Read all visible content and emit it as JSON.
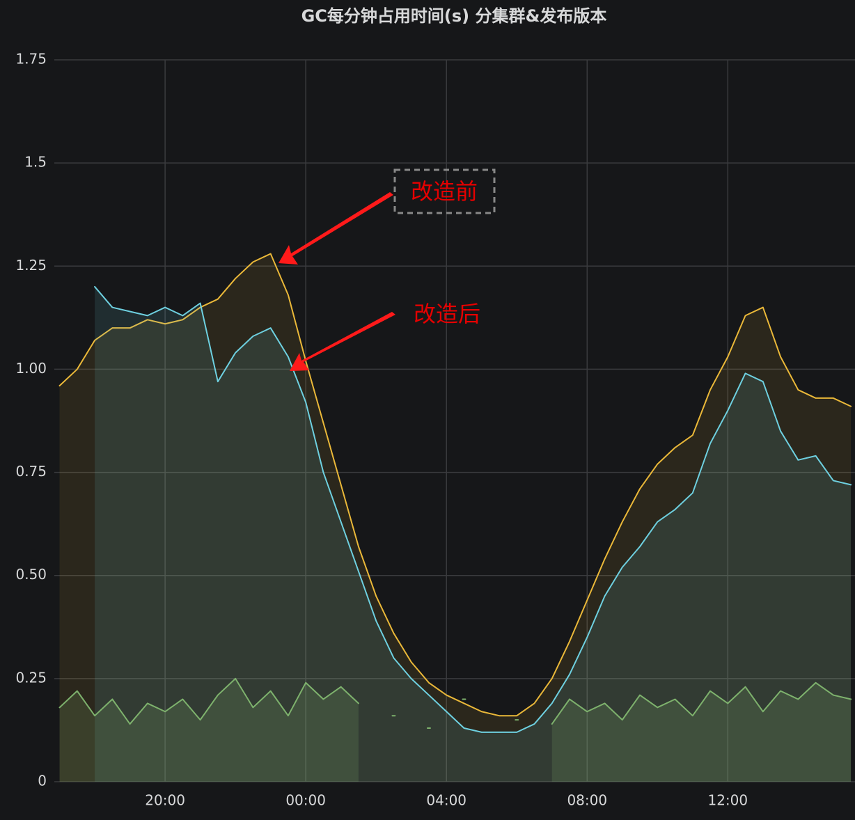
{
  "chart_data": {
    "type": "line",
    "title": "GC每分钟占用时间(s) 分集群&发布版本",
    "x": [
      "17:00",
      "17:30",
      "18:00",
      "18:30",
      "19:00",
      "19:30",
      "20:00",
      "20:30",
      "21:00",
      "21:30",
      "22:00",
      "22:30",
      "23:00",
      "23:30",
      "00:00",
      "00:30",
      "01:00",
      "01:30",
      "02:00",
      "02:30",
      "03:00",
      "03:30",
      "04:00",
      "04:30",
      "05:00",
      "05:30",
      "06:00",
      "06:30",
      "07:00",
      "07:30",
      "08:00",
      "08:30",
      "09:00",
      "09:30",
      "10:00",
      "10:30",
      "11:00",
      "11:30",
      "12:00",
      "12:30",
      "13:00",
      "13:30",
      "14:00",
      "14:30",
      "15:00",
      "15:30"
    ],
    "series": [
      {
        "color": "#eab839",
        "values": [
          0.96,
          1.0,
          1.07,
          1.1,
          1.1,
          1.12,
          1.11,
          1.12,
          1.15,
          1.17,
          1.22,
          1.26,
          1.28,
          1.18,
          1.02,
          0.87,
          0.72,
          0.57,
          0.45,
          0.36,
          0.29,
          0.24,
          0.21,
          0.19,
          0.17,
          0.16,
          0.16,
          0.19,
          0.25,
          0.34,
          0.44,
          0.54,
          0.63,
          0.71,
          0.77,
          0.81,
          0.84,
          0.95,
          1.03,
          1.13,
          1.15,
          1.03,
          0.95,
          0.93,
          0.93,
          0.91
        ]
      },
      {
        "color": "#6ed0e0",
        "values": [
          null,
          null,
          1.2,
          1.15,
          1.14,
          1.13,
          1.15,
          1.13,
          1.16,
          0.97,
          1.04,
          1.08,
          1.1,
          1.03,
          0.92,
          0.75,
          0.63,
          0.51,
          0.39,
          0.3,
          0.25,
          0.21,
          0.17,
          0.13,
          0.12,
          0.12,
          0.12,
          0.14,
          0.19,
          0.26,
          0.35,
          0.45,
          0.52,
          0.57,
          0.63,
          0.66,
          0.7,
          0.82,
          0.9,
          0.99,
          0.97,
          0.85,
          0.78,
          0.79,
          0.73,
          0.72
        ]
      },
      {
        "color": "#7eb26d",
        "values": [
          0.18,
          0.22,
          0.16,
          0.2,
          0.14,
          0.19,
          0.17,
          0.2,
          0.15,
          0.21,
          0.25,
          0.18,
          0.22,
          0.16,
          0.24,
          0.2,
          0.23,
          0.19,
          null,
          0.16,
          null,
          0.13,
          null,
          0.2,
          null,
          null,
          0.15,
          null,
          0.14,
          0.2,
          0.17,
          0.19,
          0.15,
          0.21,
          0.18,
          0.2,
          0.16,
          0.22,
          0.19,
          0.23,
          0.17,
          0.22,
          0.2,
          0.24,
          0.21,
          0.2
        ]
      }
    ],
    "xlim": [
      "16:51",
      "15:37"
    ],
    "xticks": [
      "20:00",
      "00:00",
      "04:00",
      "08:00",
      "12:00"
    ],
    "ylim": [
      0,
      1.75
    ],
    "yticks": [
      0,
      0.25,
      {
        "value": 0.5,
        "label": "0.50"
      },
      0.75,
      {
        "value": 1,
        "label": "1.00"
      },
      1.25,
      1.5,
      1.75
    ],
    "grid": true,
    "annotations": [
      {
        "text": "改造前"
      },
      {
        "text": "改造后"
      }
    ]
  }
}
